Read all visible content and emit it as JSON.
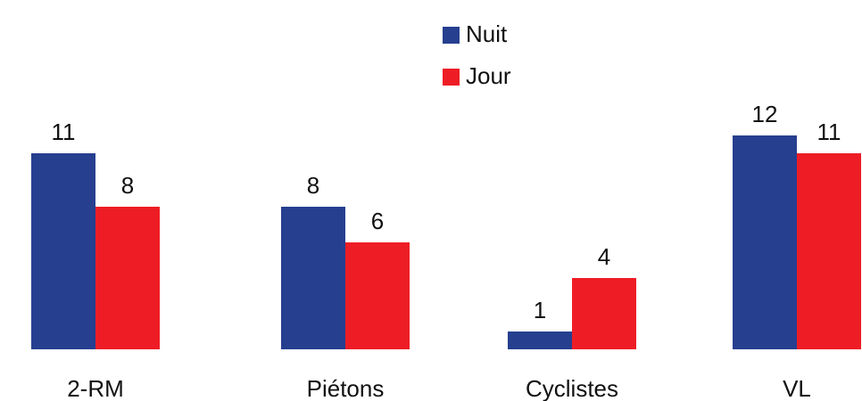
{
  "chart_data": {
    "type": "bar",
    "categories": [
      "2-RM",
      "Piétons",
      "Cyclistes",
      "VL"
    ],
    "series": [
      {
        "name": "Nuit",
        "color": "#263f8f",
        "values": [
          11,
          8,
          1,
          12
        ]
      },
      {
        "name": "Jour",
        "color": "#ee1d25",
        "values": [
          8,
          6,
          4,
          11
        ]
      }
    ]
  }
}
